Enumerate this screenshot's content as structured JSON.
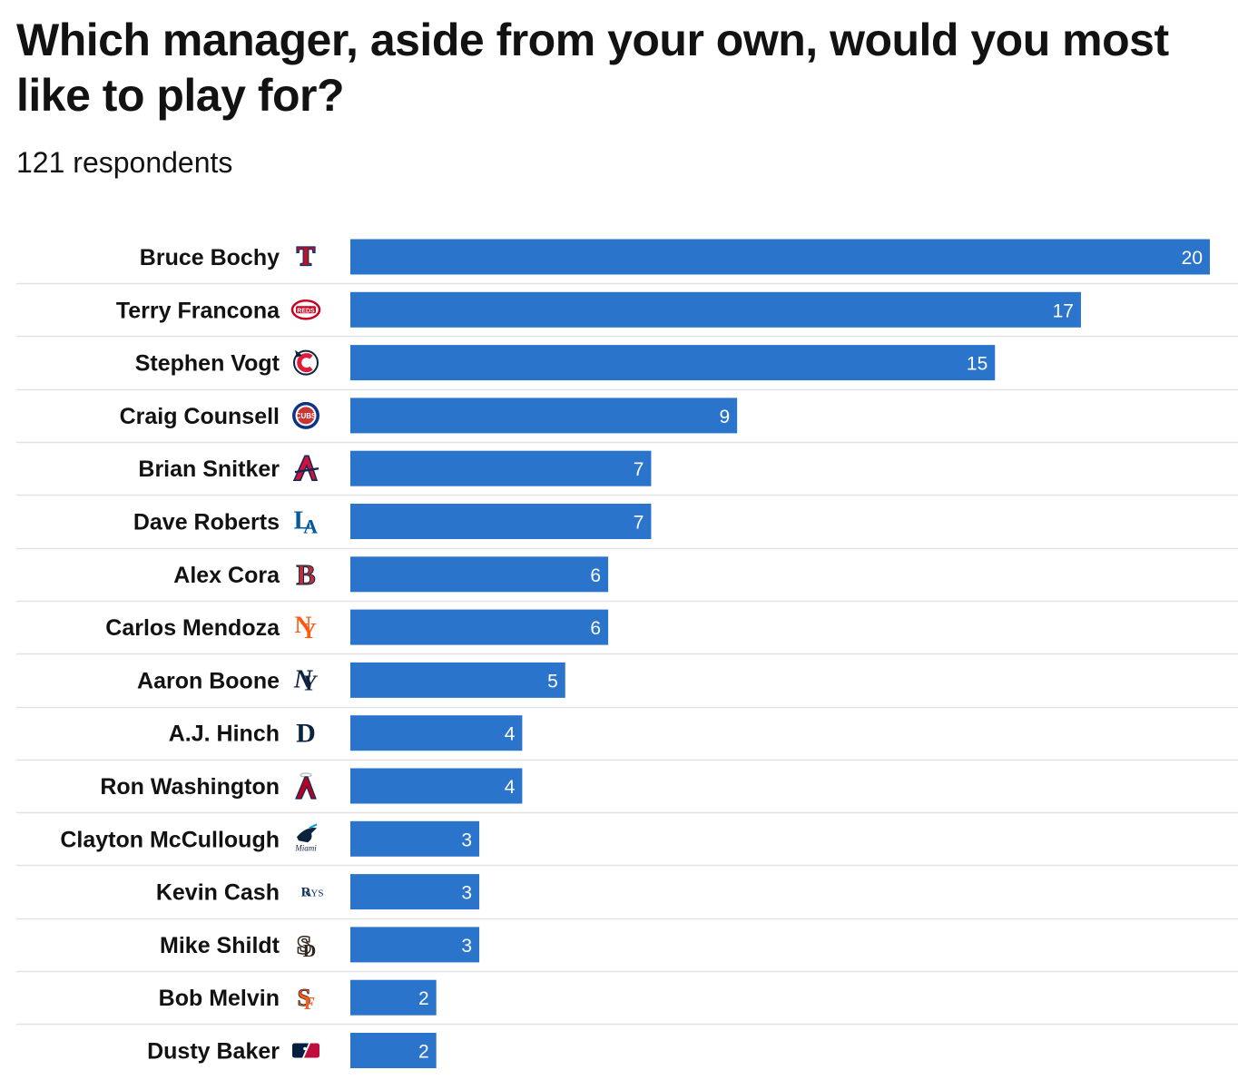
{
  "chart_data": {
    "type": "bar",
    "orientation": "horizontal",
    "title": "Which manager, aside from your own, would you most like to play for?",
    "subtitle": "121 respondents",
    "xlim": [
      0,
      20
    ],
    "grid": false,
    "bar_color": "#2b74cc",
    "categories": [
      "Bruce Bochy",
      "Terry Francona",
      "Stephen Vogt",
      "Craig Counsell",
      "Brian Snitker",
      "Dave Roberts",
      "Alex Cora",
      "Carlos Mendoza",
      "Aaron Boone",
      "A.J. Hinch",
      "Ron Washington",
      "Clayton McCullough",
      "Kevin Cash",
      "Mike Shildt",
      "Bob Melvin",
      "Dusty Baker"
    ],
    "values": [
      20,
      17,
      15,
      9,
      7,
      7,
      6,
      6,
      5,
      4,
      4,
      3,
      3,
      3,
      2,
      2
    ],
    "team_logos": [
      "rangers-logo",
      "reds-logo",
      "guardians-logo",
      "cubs-logo",
      "braves-logo",
      "dodgers-logo",
      "red-sox-logo",
      "mets-logo",
      "yankees-logo",
      "tigers-logo",
      "angels-logo",
      "marlins-logo",
      "rays-logo",
      "padres-logo",
      "giants-logo",
      "mlb-logo"
    ]
  }
}
